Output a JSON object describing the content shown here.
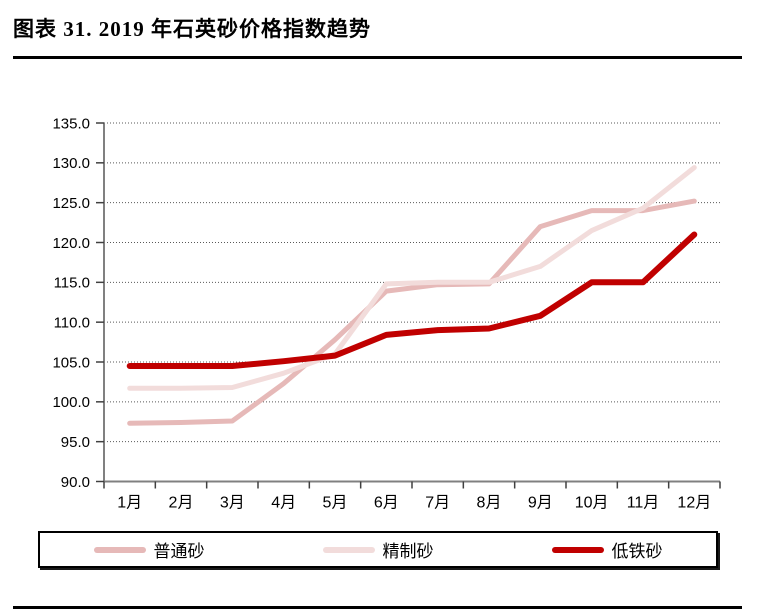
{
  "title": "图表 31. 2019 年石英砂价格指数趋势",
  "colors": {
    "ordinary_sand": "#E6B9B8",
    "refined_sand": "#F2DCDB",
    "low_iron_sand": "#C00000",
    "axis_line": "#808080",
    "tick": "#404040",
    "gridline": "#595959",
    "text": "#000000"
  },
  "chart_data": {
    "type": "line",
    "title": "图表 31. 2019 年石英砂价格指数趋势",
    "categories": [
      "1月",
      "2月",
      "3月",
      "4月",
      "5月",
      "6月",
      "7月",
      "8月",
      "9月",
      "10月",
      "11月",
      "12月"
    ],
    "series": [
      {
        "name": "普通砂",
        "color": "#E6B9B8",
        "width": 5,
        "values": [
          97.3,
          97.4,
          97.6,
          102.3,
          107.8,
          113.9,
          114.7,
          114.8,
          122.0,
          124.0,
          124.0,
          125.2
        ]
      },
      {
        "name": "精制砂",
        "color": "#F2DCDB",
        "width": 5,
        "values": [
          101.7,
          101.7,
          101.8,
          103.6,
          106.0,
          114.8,
          115.0,
          115.0,
          117.0,
          121.5,
          124.3,
          129.4
        ]
      },
      {
        "name": "低铁砂",
        "color": "#C00000",
        "width": 6,
        "values": [
          104.5,
          104.5,
          104.5,
          105.1,
          105.8,
          108.4,
          109.0,
          109.2,
          110.8,
          115.0,
          115.0,
          121.0
        ]
      }
    ],
    "xlabel": "",
    "ylabel": "",
    "ylim": [
      90.0,
      135.0
    ],
    "y_ticks": [
      90.0,
      95.0,
      100.0,
      105.0,
      110.0,
      115.0,
      120.0,
      125.0,
      130.0,
      135.0
    ],
    "y_tick_decimals": 1,
    "grid": "dotted horizontal",
    "legend_position": "bottom-box"
  }
}
